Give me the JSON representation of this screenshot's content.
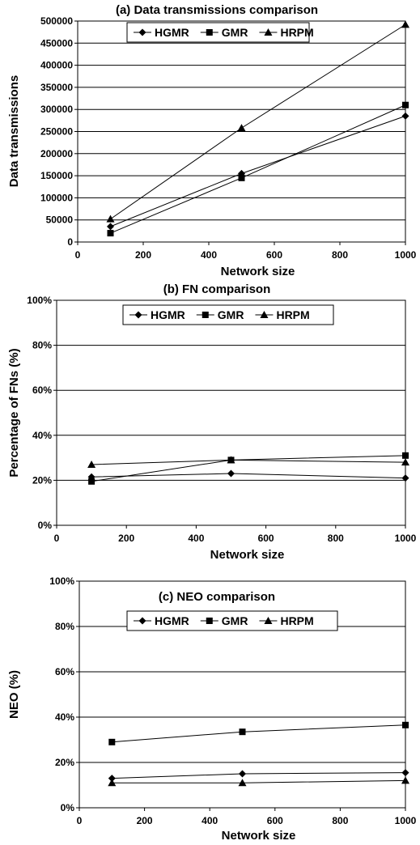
{
  "chart_data": [
    {
      "type": "line",
      "title": "(a) Data transmissions comparison",
      "xlabel": "Network size",
      "ylabel": "Data transmissions",
      "xlim": [
        0,
        1000
      ],
      "ylim": [
        0,
        500000
      ],
      "xticks": [
        "0",
        "200",
        "400",
        "600",
        "800",
        "1000"
      ],
      "yticks": [
        "0",
        "50000",
        "100000",
        "150000",
        "200000",
        "250000",
        "300000",
        "350000",
        "400000",
        "450000",
        "500000"
      ],
      "grid": "horizontal",
      "legend_position": "top-center",
      "x": [
        100,
        500,
        1000
      ],
      "series": [
        {
          "name": "HGMR",
          "marker": "diamond",
          "values": [
            35000,
            155000,
            285000
          ]
        },
        {
          "name": "GMR",
          "marker": "square",
          "values": [
            20000,
            145000,
            310000
          ]
        },
        {
          "name": "HRPM",
          "marker": "triangle",
          "values": [
            52000,
            258000,
            492000
          ]
        }
      ]
    },
    {
      "type": "line",
      "title": "(b) FN comparison",
      "xlabel": "Network size",
      "ylabel": "Percentage of FNs (%)",
      "xlim": [
        0,
        1000
      ],
      "ylim": [
        0,
        100
      ],
      "xticks": [
        "0",
        "200",
        "400",
        "600",
        "800",
        "1000"
      ],
      "yticks": [
        "0%",
        "20%",
        "40%",
        "60%",
        "80%",
        "100%"
      ],
      "grid": "horizontal",
      "legend_position": "top-center",
      "x": [
        100,
        500,
        1000
      ],
      "series": [
        {
          "name": "HGMR",
          "marker": "diamond",
          "values": [
            21.5,
            23,
            21
          ]
        },
        {
          "name": "GMR",
          "marker": "square",
          "values": [
            19.5,
            29,
            31
          ]
        },
        {
          "name": "HRPM",
          "marker": "triangle",
          "values": [
            27,
            29,
            28
          ]
        }
      ]
    },
    {
      "type": "line",
      "title": "(c) NEO comparison",
      "xlabel": "Network size",
      "ylabel": "NEO (%)",
      "xlim": [
        0,
        1000
      ],
      "ylim": [
        0,
        100
      ],
      "xticks": [
        "0",
        "200",
        "400",
        "600",
        "800",
        "1000"
      ],
      "yticks": [
        "0%",
        "20%",
        "40%",
        "60%",
        "80%",
        "100%"
      ],
      "grid": "horizontal",
      "legend_position": "top-center",
      "x": [
        100,
        500,
        1000
      ],
      "series": [
        {
          "name": "HGMR",
          "marker": "diamond",
          "values": [
            13,
            15,
            15.5
          ]
        },
        {
          "name": "GMR",
          "marker": "square",
          "values": [
            29,
            33.5,
            36.5
          ]
        },
        {
          "name": "HRPM",
          "marker": "triangle",
          "values": [
            11,
            11,
            12
          ]
        }
      ]
    }
  ]
}
